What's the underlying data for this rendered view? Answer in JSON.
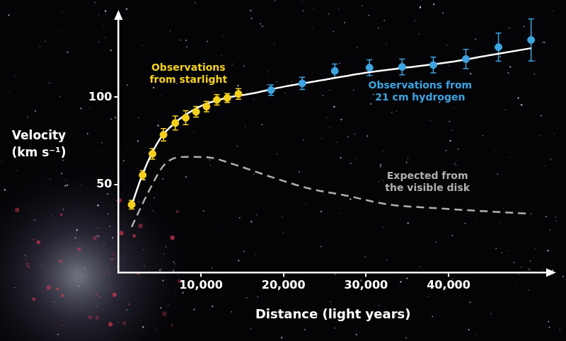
{
  "chart_data": {
    "type": "scatter",
    "xlabel": "Distance (light years)",
    "ylabel": "Velocity (km s⁻¹)",
    "xlim": [
      0,
      52000
    ],
    "xticks": [
      {
        "value": 10000,
        "label": "10,000"
      },
      {
        "value": 20000,
        "label": "20,000"
      },
      {
        "value": 30000,
        "label": "30,000"
      },
      {
        "value": 40000,
        "label": "40,000"
      }
    ],
    "ylim": [
      0,
      145
    ],
    "yticks": [
      50,
      100
    ],
    "grid": false,
    "series": [
      {
        "name": "Observations from starlight",
        "type": "scatter",
        "marker": "circle",
        "color": "#f4d01c",
        "x": [
          1600,
          2940,
          4120,
          5460,
          6890,
          8150,
          9410,
          10670,
          11930,
          13190,
          14540
        ],
        "values": [
          38.7,
          55.6,
          67.7,
          78.6,
          85.3,
          88.3,
          91.7,
          94.7,
          98.5,
          99.6,
          101.9
        ],
        "errors": [
          2.5,
          2.5,
          3,
          3.5,
          4,
          4,
          3,
          3,
          3,
          2.5,
          3
        ]
      },
      {
        "name": "Observations from 21 cm hydrogen",
        "type": "scatter",
        "marker": "circle",
        "color": "#3da4e0",
        "x": [
          18490,
          22270,
          26220,
          30420,
          34370,
          38150,
          42100,
          46050,
          50000
        ],
        "values": [
          104.1,
          107.9,
          115.0,
          116.9,
          117.3,
          118.4,
          121.8,
          128.6,
          132.7
        ],
        "errors": [
          3,
          3.5,
          4,
          4.5,
          4.5,
          4.5,
          5.5,
          8,
          12
        ]
      },
      {
        "type": "line",
        "line_style": "solid",
        "color": "#ffffff",
        "x": [
          1500,
          3000,
          5000,
          7000,
          10000,
          13000,
          16000,
          20000,
          25000,
          30000,
          35000,
          40000,
          45000,
          50000
        ],
        "values": [
          37,
          57,
          76,
          86,
          95,
          99.5,
          102,
          106,
          110,
          114,
          117,
          120,
          124,
          128
        ]
      },
      {
        "name": "Expected from the visible disk",
        "type": "line",
        "line_style": "dashed",
        "color": "#b0b0b0",
        "x": [
          1600,
          3500,
          5600,
          8150,
          10700,
          14000,
          18200,
          23300,
          27500,
          32500,
          39200,
          44300,
          50000
        ],
        "values": [
          26,
          44.7,
          61.7,
          66,
          65.8,
          61.7,
          55,
          47.7,
          44,
          39,
          36.5,
          35,
          33.5
        ]
      }
    ]
  }
}
